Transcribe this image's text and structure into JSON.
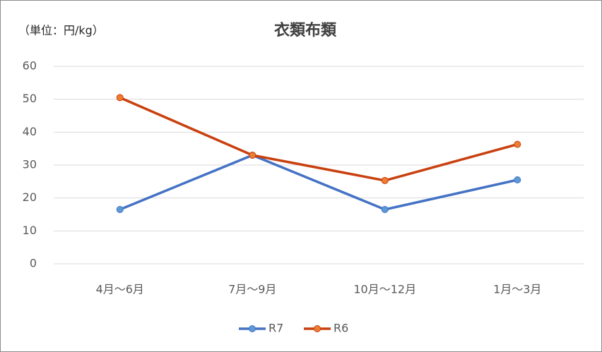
{
  "chart_data": {
    "type": "line",
    "title": "衣類布類",
    "annotation": "（単位：円/kg）",
    "categories": [
      "4月～6月",
      "7月～9月",
      "10月～12月",
      "1月～3月"
    ],
    "series": [
      {
        "name": "R7",
        "color": "#4472c4",
        "marker_color": "#5b9bd5",
        "values": [
          16.5,
          33,
          16.5,
          25.5
        ]
      },
      {
        "name": "R6",
        "color": "#c9400f",
        "marker_color": "#ed7d31",
        "values": [
          50.5,
          33,
          25.3,
          36.3
        ]
      }
    ],
    "ylim": [
      0,
      60
    ],
    "yticks": [
      0,
      10,
      20,
      30,
      40,
      50,
      60
    ],
    "grid": true,
    "legend": "bottom"
  }
}
